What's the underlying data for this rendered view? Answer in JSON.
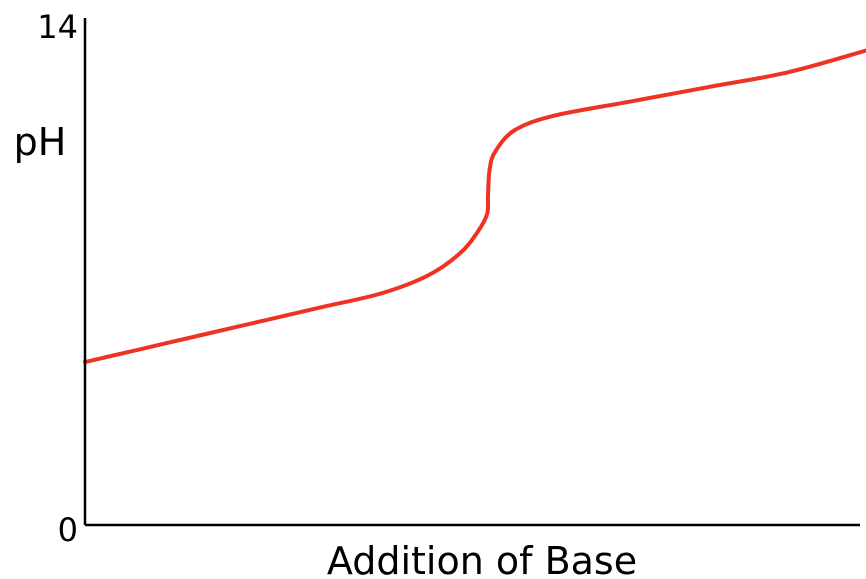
{
  "chart_data": {
    "type": "line",
    "title": "",
    "xlabel": "Addition of Base",
    "ylabel": "pH",
    "xlim": [
      0,
      100
    ],
    "ylim": [
      0,
      14
    ],
    "yticks": [
      {
        "value": 0,
        "label": "0"
      },
      {
        "value": 14,
        "label": "14"
      }
    ],
    "grid": false,
    "legend": "none",
    "colors": {
      "line": "#ee3322",
      "axis": "#000000"
    },
    "series": [
      {
        "x": [
          0,
          10,
          20,
          30,
          38,
          44,
          48,
          50.3,
          51.5,
          51.6,
          51.8,
          52.5,
          55,
          60,
          70,
          80,
          90,
          100
        ],
        "y": [
          4.5,
          5.0,
          5.5,
          6.0,
          6.4,
          6.9,
          7.5,
          8.1,
          8.6,
          9.1,
          9.8,
          10.3,
          10.9,
          11.3,
          11.7,
          12.1,
          12.5,
          13.1
        ]
      }
    ]
  }
}
